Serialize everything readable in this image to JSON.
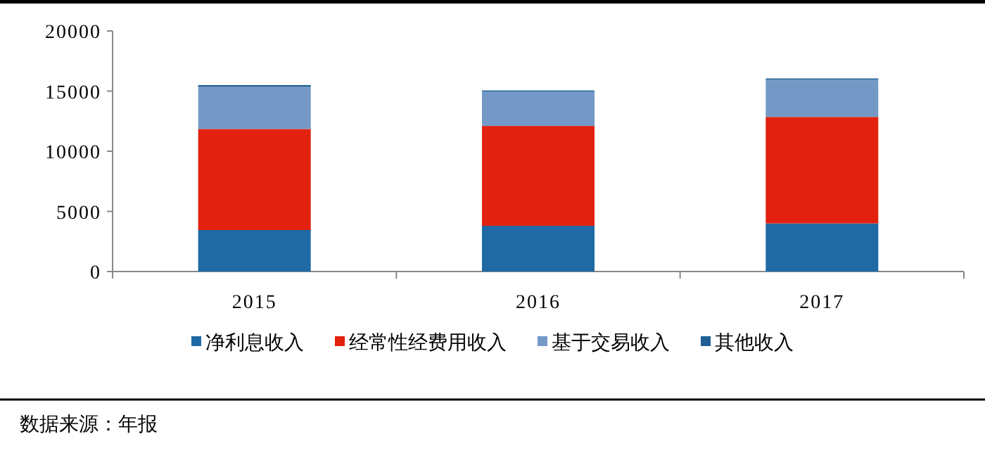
{
  "chart_data": {
    "type": "bar",
    "stacked": true,
    "categories": [
      "2015",
      "2016",
      "2017"
    ],
    "series": [
      {
        "name": "净利息收入",
        "color": "#1f6aa5",
        "values": [
          3450,
          3800,
          4000
        ]
      },
      {
        "name": "经常性经费用收入",
        "color": "#e2210f",
        "values": [
          8400,
          8300,
          8850
        ]
      },
      {
        "name": "基于交易收入",
        "color": "#7499c7",
        "values": [
          3500,
          2850,
          3100
        ]
      },
      {
        "name": "其他收入",
        "color": "#1f5f95",
        "values": [
          150,
          100,
          100
        ]
      }
    ],
    "ylim": [
      0,
      20000
    ],
    "yticks": [
      0,
      5000,
      10000,
      15000,
      20000
    ],
    "legend": "bottom",
    "annotations": [
      "数据来源：年报"
    ]
  }
}
